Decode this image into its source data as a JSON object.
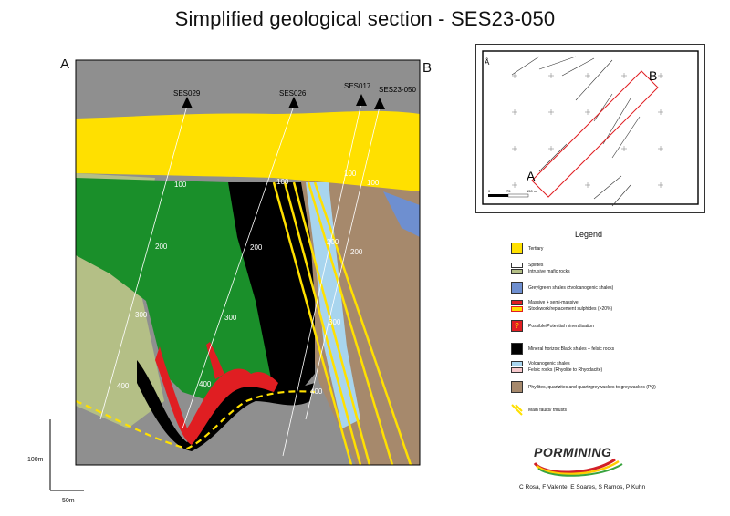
{
  "title": "Simplified geological section - SES23-050",
  "corners": {
    "a": "A",
    "b": "B"
  },
  "drillholes": [
    "SES029",
    "SES026",
    "SES017",
    "SES23-050"
  ],
  "depth_labels": [
    "100",
    "200",
    "300",
    "400"
  ],
  "scale": {
    "vertical": "100m",
    "horizontal": "50m"
  },
  "inset_map": {
    "label_a": "A",
    "label_b": "B",
    "scale_labels": [
      "0",
      "75",
      "150 m"
    ]
  },
  "legend": {
    "title": "Legend",
    "items": [
      {
        "label": "Tertiary",
        "color": "#ffe000"
      },
      {
        "label": "Splittes",
        "color": "#ffffff"
      },
      {
        "label": "Intrusive mafic rocks",
        "color": "#b4bf86"
      },
      {
        "label": "Grey/green shales (±volcanogenic shales)",
        "color": "#6e8fd0"
      },
      {
        "label": "Massive + semi-massive",
        "color": "#e01e22"
      },
      {
        "label": "Stockwork/replacement sulphides (>20%)",
        "color": "#ffe000"
      },
      {
        "label": "Possible/Potential mineralisation",
        "color": "#e01e22"
      },
      {
        "label": "Mineral horizon:Black shales + felsic rocks",
        "color": "#000000"
      },
      {
        "label": "Volcanogenic shales",
        "color": "#a8d5ee"
      },
      {
        "label": "Felsic rocks (Rhyolite to Rhyodacite)",
        "color": "#f6c8cc"
      },
      {
        "label": "Phyllites, quartzites and quartzgreywackes to greywackes (PQ)",
        "color": "#a6896c"
      },
      {
        "label": "Main faults/ thrusts",
        "color": "#ffe000"
      }
    ]
  },
  "logo": "PORMINING",
  "authors": "C Rosa, F Valente, E Soares, S Ramos, P Kuhn",
  "colors": {
    "tertiary": "#ffe000",
    "green": "#1a8f2a",
    "mafic": "#b4bf86",
    "brown": "#a6896c",
    "grey": "#8f8f8f",
    "red": "#e01e22",
    "black": "#000000",
    "lightblue": "#a8d5ee",
    "blue": "#6e8fd0"
  }
}
